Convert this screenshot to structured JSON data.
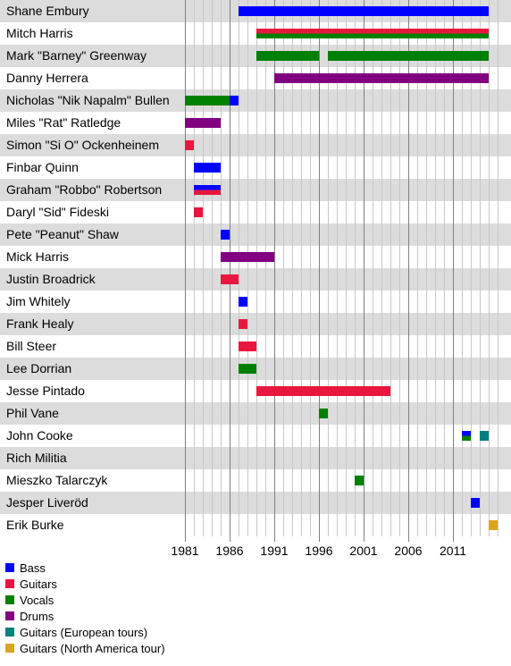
{
  "chart_data": {
    "type": "timeline",
    "title": "",
    "xlim": [
      1981,
      2016
    ],
    "x_ticks": [
      "1981",
      "1986",
      "1991",
      "1996",
      "2001",
      "2006",
      "2011"
    ],
    "legend_position": "bottom-left",
    "roles": [
      {
        "key": "bass",
        "label": "Bass",
        "color": "#0000ff"
      },
      {
        "key": "guitars",
        "label": "Guitars",
        "color": "#e8173f"
      },
      {
        "key": "vocals",
        "label": "Vocals",
        "color": "#008000"
      },
      {
        "key": "drums",
        "label": "Drums",
        "color": "#800080"
      },
      {
        "key": "guitars_eu",
        "label": "Guitars (European tours)",
        "color": "#008080"
      },
      {
        "key": "guitars_na",
        "label": "Guitars (North America tour)",
        "color": "#daa520"
      }
    ],
    "members": [
      {
        "name": "Shane Embury",
        "stints": [
          {
            "role": "bass",
            "start": 1987,
            "end": 2015
          }
        ]
      },
      {
        "name": "Mitch Harris",
        "stints": [
          {
            "role": "guitars",
            "start": 1989,
            "end": 2015
          },
          {
            "role": "vocals",
            "start": 1989,
            "end": 2015
          }
        ]
      },
      {
        "name": "Mark \"Barney\" Greenway",
        "stints": [
          {
            "role": "vocals",
            "start": 1989,
            "end": 1996
          },
          {
            "role": "vocals",
            "start": 1997,
            "end": 2015
          }
        ]
      },
      {
        "name": "Danny Herrera",
        "stints": [
          {
            "role": "drums",
            "start": 1991,
            "end": 2015
          }
        ]
      },
      {
        "name": "Nicholas \"Nik Napalm\" Bullen",
        "stints": [
          {
            "role": "vocals",
            "start": 1981,
            "end": 1986
          },
          {
            "role": "bass",
            "start": 1986,
            "end": 1987
          }
        ]
      },
      {
        "name": "Miles \"Rat\" Ratledge",
        "stints": [
          {
            "role": "drums",
            "start": 1981,
            "end": 1985
          }
        ]
      },
      {
        "name": "Simon \"Si O\" Ockenheinem",
        "stints": [
          {
            "role": "guitars",
            "start": 1981,
            "end": 1982
          }
        ]
      },
      {
        "name": "Finbar Quinn",
        "stints": [
          {
            "role": "bass",
            "start": 1982,
            "end": 1985
          }
        ]
      },
      {
        "name": "Graham \"Robbo\" Robertson",
        "stints": [
          {
            "role": "bass",
            "start": 1982,
            "end": 1985
          },
          {
            "role": "guitars",
            "start": 1982,
            "end": 1985
          }
        ]
      },
      {
        "name": "Daryl \"Sid\" Fideski",
        "stints": [
          {
            "role": "guitars",
            "start": 1982,
            "end": 1983
          }
        ]
      },
      {
        "name": "Pete \"Peanut\" Shaw",
        "stints": [
          {
            "role": "bass",
            "start": 1985,
            "end": 1986
          }
        ]
      },
      {
        "name": "Mick Harris",
        "stints": [
          {
            "role": "drums",
            "start": 1985,
            "end": 1991
          }
        ]
      },
      {
        "name": "Justin Broadrick",
        "stints": [
          {
            "role": "guitars",
            "start": 1985,
            "end": 1987
          }
        ]
      },
      {
        "name": "Jim Whitely",
        "stints": [
          {
            "role": "bass",
            "start": 1987,
            "end": 1988
          }
        ]
      },
      {
        "name": "Frank Healy",
        "stints": [
          {
            "role": "guitars",
            "start": 1987,
            "end": 1988
          }
        ]
      },
      {
        "name": "Bill Steer",
        "stints": [
          {
            "role": "guitars",
            "start": 1987,
            "end": 1989
          }
        ]
      },
      {
        "name": "Lee Dorrian",
        "stints": [
          {
            "role": "vocals",
            "start": 1987,
            "end": 1989
          }
        ]
      },
      {
        "name": "Jesse Pintado",
        "stints": [
          {
            "role": "guitars",
            "start": 1989,
            "end": 2004
          }
        ]
      },
      {
        "name": "Phil Vane",
        "stints": [
          {
            "role": "vocals",
            "start": 1996,
            "end": 1997
          }
        ]
      },
      {
        "name": "John Cooke",
        "stints": [
          {
            "role": "bass",
            "start": 2012,
            "end": 2013
          },
          {
            "role": "vocals",
            "start": 2012,
            "end": 2013
          },
          {
            "role": "guitars_eu",
            "start": 2014,
            "end": 2015
          }
        ]
      },
      {
        "name": "Rich Militia",
        "stints": []
      },
      {
        "name": "Mieszko Talarczyk",
        "stints": [
          {
            "role": "vocals",
            "start": 2000,
            "end": 2001
          }
        ]
      },
      {
        "name": "Jesper Liveröd",
        "stints": [
          {
            "role": "bass",
            "start": 2013,
            "end": 2014
          }
        ]
      },
      {
        "name": "Erik Burke",
        "stints": [
          {
            "role": "guitars_na",
            "start": 2015,
            "end": 2016
          }
        ]
      }
    ]
  }
}
